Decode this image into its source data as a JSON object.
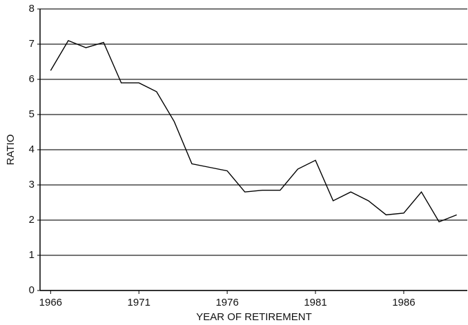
{
  "chart_data": {
    "type": "line",
    "x_label": "YEAR OF RETIREMENT",
    "y_label": "RATIO",
    "x": [
      1966,
      1967,
      1968,
      1969,
      1970,
      1971,
      1972,
      1973,
      1974,
      1975,
      1976,
      1977,
      1978,
      1979,
      1980,
      1981,
      1982,
      1983,
      1984,
      1985,
      1986,
      1987,
      1988,
      1989
    ],
    "values": [
      6.25,
      7.1,
      6.9,
      7.05,
      5.9,
      5.9,
      5.65,
      4.8,
      3.6,
      3.5,
      3.4,
      2.8,
      2.85,
      2.85,
      3.45,
      3.7,
      2.55,
      2.8,
      2.55,
      2.15,
      2.2,
      2.8,
      1.95,
      2.15
    ],
    "color": "#000000",
    "xlim": [
      1965.4,
      1989.6
    ],
    "xticks": [
      1966,
      1971,
      1976,
      1981,
      1986
    ],
    "ylim": [
      0,
      8
    ],
    "yticks": [
      0,
      1,
      2,
      3,
      4,
      5,
      6,
      7,
      8
    ],
    "grid": true
  }
}
